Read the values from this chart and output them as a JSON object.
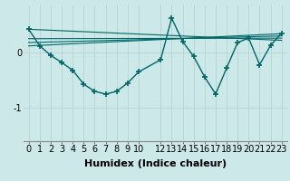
{
  "xlabel": "Humidex (Indice chaleur)",
  "bg_color": "#cce8e8",
  "line_color": "#006666",
  "grid_color": "#b0d0d0",
  "xlim": [
    -0.5,
    23.5
  ],
  "ylim": [
    -1.6,
    0.85
  ],
  "x_ticks": [
    0,
    1,
    2,
    3,
    4,
    5,
    6,
    7,
    8,
    9,
    10,
    12,
    13,
    14,
    15,
    16,
    17,
    18,
    19,
    20,
    21,
    22,
    23
  ],
  "y_ticks": [
    -1,
    0
  ],
  "main_series_x": [
    0,
    1,
    2,
    3,
    4,
    5,
    6,
    7,
    8,
    9,
    10,
    12,
    13,
    14,
    15,
    16,
    17,
    18,
    19,
    20,
    21,
    22,
    23
  ],
  "main_series_y": [
    0.42,
    0.12,
    -0.05,
    -0.18,
    -0.32,
    -0.57,
    -0.7,
    -0.75,
    -0.7,
    -0.55,
    -0.35,
    -0.13,
    0.62,
    0.2,
    -0.07,
    -0.44,
    -0.75,
    -0.28,
    0.18,
    0.26,
    -0.22,
    0.13,
    0.35
  ],
  "trend_lines": [
    {
      "x": [
        0,
        23
      ],
      "y": [
        0.42,
        0.22
      ]
    },
    {
      "x": [
        0,
        23
      ],
      "y": [
        0.25,
        0.26
      ]
    },
    {
      "x": [
        0,
        23
      ],
      "y": [
        0.18,
        0.3
      ]
    },
    {
      "x": [
        0,
        23
      ],
      "y": [
        0.12,
        0.34
      ]
    }
  ],
  "tick_fontsize": 7,
  "xlabel_fontsize": 8
}
